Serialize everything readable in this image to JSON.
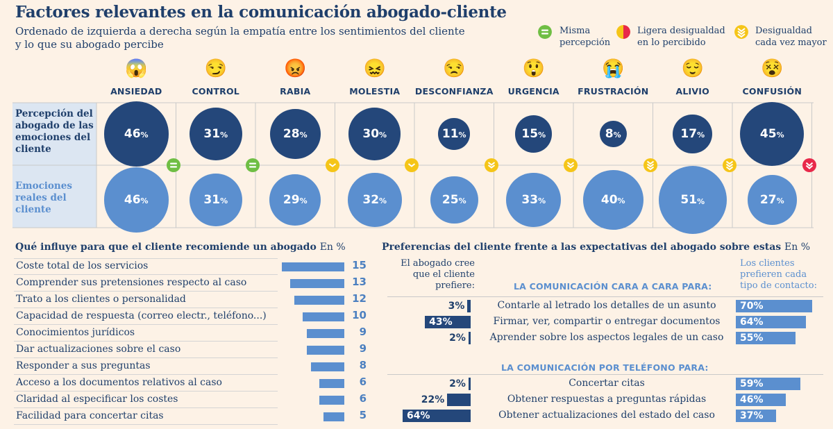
{
  "title": "Factores relevantes en la comunicación abogado-cliente",
  "subtitle_line1": "Ordenado de izquierda a derecha según la empatía entre los sentimientos del cliente",
  "subtitle_line2": "y lo que su abogado percibe",
  "legend": [
    {
      "label1": "Misma",
      "label2": "percepción",
      "icon": "equal-icon",
      "color": "#6fbe44"
    },
    {
      "label1": "Ligera desigualdad",
      "label2": "en lo percibido",
      "icon": "half-circle-icon",
      "color": "#e8294a"
    },
    {
      "label1": "Desigualdad",
      "label2": "cada vez mayor",
      "icon": "chevrons-down-icon",
      "color": "#f5c518"
    }
  ],
  "row_labels": {
    "perceived": "Percepción del abogado de las emociones del cliente",
    "actual": "Emociones reales del cliente"
  },
  "emotions": [
    {
      "name": "ANSIEDAD",
      "face": "😱",
      "perceived": 46,
      "actual": 46,
      "badge": "equal"
    },
    {
      "name": "CONTROL",
      "face": "😏",
      "perceived": 31,
      "actual": 31,
      "badge": "equal"
    },
    {
      "name": "RABIA",
      "face": "😡",
      "perceived": 28,
      "actual": 29,
      "badge": "down1"
    },
    {
      "name": "MOLESTIA",
      "face": "😖",
      "perceived": 30,
      "actual": 32,
      "badge": "down1"
    },
    {
      "name": "DESCONFIANZA",
      "face": "😒",
      "perceived": 11,
      "actual": 25,
      "badge": "down2"
    },
    {
      "name": "URGENCIA",
      "face": "😲",
      "perceived": 15,
      "actual": 33,
      "badge": "down2"
    },
    {
      "name": "FRUSTRACIÓN",
      "face": "😭",
      "perceived": 8,
      "actual": 40,
      "badge": "down3"
    },
    {
      "name": "ALIVIO",
      "face": "😌",
      "perceived": 17,
      "actual": 51,
      "badge": "down3"
    },
    {
      "name": "CONFUSIÓN",
      "face": "😵",
      "perceived": 45,
      "actual": 27,
      "badge": "red"
    }
  ],
  "percent_sign": "%",
  "factors": {
    "title": "Qué influye para que el cliente recomiende un abogado",
    "unit": "En %",
    "items": [
      {
        "label": "Coste total de los servicios",
        "value": 15
      },
      {
        "label": "Comprender sus pretensiones respecto al caso",
        "value": 13
      },
      {
        "label": "Trato a los clientes o personalidad",
        "value": 12
      },
      {
        "label": "Capacidad de respuesta (correo electr., teléfono...)",
        "value": 10
      },
      {
        "label": "Conocimientos jurídicos",
        "value": 9
      },
      {
        "label": "Dar actualizaciones sobre el caso",
        "value": 9
      },
      {
        "label": "Responder a sus preguntas",
        "value": 8
      },
      {
        "label": "Acceso a los documentos relativos al caso",
        "value": 6
      },
      {
        "label": "Claridad al especificar los costes",
        "value": 6
      },
      {
        "label": "Facilidad para concertar citas",
        "value": 5
      }
    ]
  },
  "preferences": {
    "title": "Preferencias del cliente frente a las expectativas del abogado sobre estas",
    "unit": "En %",
    "left_header_1": "El abogado cree",
    "left_header_2": "que el cliente",
    "left_header_3": "prefiere:",
    "right_header_1": "Los clientes",
    "right_header_2": "prefieren cada",
    "right_header_3": "tipo de contacto:",
    "groups": [
      {
        "heading": "LA COMUNICACIÓN CARA A CARA PARA:",
        "rows": [
          {
            "task": "Contarle al letrado los detalles de un asunto",
            "lawyer": 3,
            "client": 70
          },
          {
            "task": "Firmar, ver, compartir o entregar documentos",
            "lawyer": 43,
            "client": 64
          },
          {
            "task": "Aprender sobre los aspectos legales de un caso",
            "lawyer": 2,
            "client": 55
          }
        ]
      },
      {
        "heading": "LA COMUNICACIÓN POR TELÉFONO PARA:",
        "rows": [
          {
            "task": "Concertar citas",
            "lawyer": 2,
            "client": 59
          },
          {
            "task": "Obtener respuestas a preguntas rápidas",
            "lawyer": 22,
            "client": 46
          },
          {
            "task": "Obtener actualizaciones del estado del caso",
            "lawyer": 64,
            "client": 37
          }
        ]
      }
    ]
  },
  "colors": {
    "dark": "#24477a",
    "light": "#5b8fcf",
    "green": "#6fbe44",
    "yellow": "#f5c518",
    "red": "#e8294a",
    "bg": "#fdf2e6"
  },
  "chart_data": [
    {
      "type": "bubble-comparison",
      "title": "Percepción del abogado vs emociones reales del cliente",
      "categories": [
        "ANSIEDAD",
        "CONTROL",
        "RABIA",
        "MOLESTIA",
        "DESCONFIANZA",
        "URGENCIA",
        "FRUSTRACIÓN",
        "ALIVIO",
        "CONFUSIÓN"
      ],
      "series": [
        {
          "name": "Percepción del abogado de las emociones del cliente",
          "values": [
            46,
            31,
            28,
            30,
            11,
            15,
            8,
            17,
            45
          ]
        },
        {
          "name": "Emociones reales del cliente",
          "values": [
            46,
            31,
            29,
            32,
            25,
            33,
            40,
            51,
            27
          ]
        }
      ]
    },
    {
      "type": "bar",
      "title": "Qué influye para que el cliente recomiende un abogado",
      "unit": "%",
      "categories": [
        "Coste total de los servicios",
        "Comprender sus pretensiones respecto al caso",
        "Trato a los clientes o personalidad",
        "Capacidad de respuesta (correo electr., teléfono...)",
        "Conocimientos jurídicos",
        "Dar actualizaciones sobre el caso",
        "Responder a sus preguntas",
        "Acceso a los documentos relativos al caso",
        "Claridad al especificar los costes",
        "Facilidad para concertar citas"
      ],
      "values": [
        15,
        13,
        12,
        10,
        9,
        9,
        8,
        6,
        6,
        5
      ]
    },
    {
      "type": "bar",
      "title": "Preferencias del cliente frente a las expectativas del abogado sobre estas",
      "unit": "%",
      "categories": [
        "Contarle al letrado los detalles de un asunto",
        "Firmar, ver, compartir o entregar documentos",
        "Aprender sobre los aspectos legales de un caso",
        "Concertar citas",
        "Obtener respuestas a preguntas rápidas",
        "Obtener actualizaciones del estado del caso"
      ],
      "series": [
        {
          "name": "El abogado cree que el cliente prefiere",
          "values": [
            3,
            43,
            2,
            2,
            22,
            64
          ]
        },
        {
          "name": "Los clientes prefieren cada tipo de contacto",
          "values": [
            70,
            64,
            55,
            59,
            46,
            37
          ]
        }
      ]
    }
  ]
}
